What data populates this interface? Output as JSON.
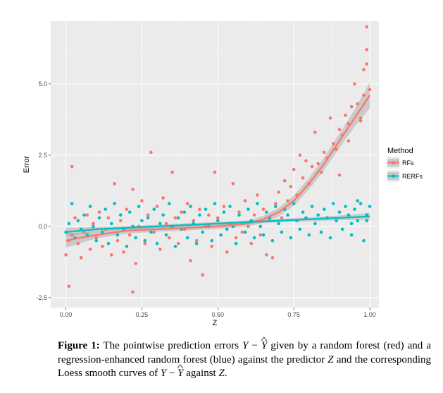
{
  "chart_data": {
    "type": "scatter",
    "xlabel": "Z",
    "ylabel": "Error",
    "xlim": [
      -0.05,
      1.03
    ],
    "ylim": [
      -2.85,
      7.2
    ],
    "x_ticks": [
      0.0,
      0.25,
      0.5,
      0.75,
      1.0
    ],
    "x_tick_labels": [
      "0.00",
      "0.25",
      "0.50",
      "0.75",
      "1.00"
    ],
    "y_ticks": [
      -2.5,
      0.0,
      2.5,
      5.0
    ],
    "y_tick_labels": [
      "-2.5",
      "0.0",
      "2.5",
      "5.0"
    ],
    "grid": true,
    "legend": {
      "title": "Method",
      "position": "right"
    },
    "series": [
      {
        "name": "RFs",
        "color": "#F8766D",
        "points": [
          [
            0.0,
            -1.0
          ],
          [
            0.01,
            -0.5
          ],
          [
            0.01,
            -2.1
          ],
          [
            0.02,
            2.1
          ],
          [
            0.02,
            -0.3
          ],
          [
            0.03,
            0.3
          ],
          [
            0.04,
            -0.6
          ],
          [
            0.05,
            -1.1
          ],
          [
            0.06,
            -0.2
          ],
          [
            0.07,
            0.4
          ],
          [
            0.08,
            -0.8
          ],
          [
            0.09,
            0.1
          ],
          [
            0.1,
            -0.4
          ],
          [
            0.11,
            0.5
          ],
          [
            0.12,
            -0.7
          ],
          [
            0.13,
            -0.1
          ],
          [
            0.14,
            0.3
          ],
          [
            0.15,
            -1.0
          ],
          [
            0.16,
            1.5
          ],
          [
            0.17,
            -0.5
          ],
          [
            0.18,
            0.2
          ],
          [
            0.19,
            -0.9
          ],
          [
            0.2,
            0.6
          ],
          [
            0.21,
            -0.3
          ],
          [
            0.22,
            -2.3
          ],
          [
            0.22,
            1.3
          ],
          [
            0.23,
            -1.3
          ],
          [
            0.24,
            0.0
          ],
          [
            0.25,
            0.9
          ],
          [
            0.26,
            -0.6
          ],
          [
            0.27,
            0.4
          ],
          [
            0.28,
            2.6
          ],
          [
            0.29,
            -0.2
          ],
          [
            0.3,
            0.7
          ],
          [
            0.31,
            -0.8
          ],
          [
            0.32,
            1.0
          ],
          [
            0.33,
            0.1
          ],
          [
            0.34,
            -0.4
          ],
          [
            0.35,
            1.9
          ],
          [
            0.36,
            0.3
          ],
          [
            0.37,
            -0.6
          ],
          [
            0.38,
            0.5
          ],
          [
            0.39,
            -0.1
          ],
          [
            0.4,
            0.8
          ],
          [
            0.41,
            -1.2
          ],
          [
            0.42,
            0.2
          ],
          [
            0.43,
            -0.5
          ],
          [
            0.44,
            0.6
          ],
          [
            0.45,
            -1.7
          ],
          [
            0.46,
            0.0
          ],
          [
            0.47,
            0.4
          ],
          [
            0.48,
            -0.7
          ],
          [
            0.49,
            1.9
          ],
          [
            0.5,
            0.3
          ],
          [
            0.51,
            -0.3
          ],
          [
            0.52,
            0.7
          ],
          [
            0.53,
            -0.9
          ],
          [
            0.54,
            0.1
          ],
          [
            0.55,
            1.5
          ],
          [
            0.56,
            -0.4
          ],
          [
            0.57,
            0.5
          ],
          [
            0.58,
            -0.2
          ],
          [
            0.59,
            0.9
          ],
          [
            0.6,
            0.0
          ],
          [
            0.61,
            -0.6
          ],
          [
            0.62,
            0.4
          ],
          [
            0.63,
            1.1
          ],
          [
            0.64,
            -0.3
          ],
          [
            0.65,
            0.6
          ],
          [
            0.66,
            -1.0
          ],
          [
            0.67,
            0.2
          ],
          [
            0.68,
            -1.1
          ],
          [
            0.69,
            0.8
          ],
          [
            0.7,
            1.2
          ],
          [
            0.71,
            0.3
          ],
          [
            0.72,
            1.6
          ],
          [
            0.73,
            0.9
          ],
          [
            0.74,
            1.4
          ],
          [
            0.75,
            2.0
          ],
          [
            0.76,
            1.1
          ],
          [
            0.77,
            2.5
          ],
          [
            0.78,
            1.7
          ],
          [
            0.79,
            2.3
          ],
          [
            0.8,
            1.5
          ],
          [
            0.81,
            2.1
          ],
          [
            0.82,
            3.3
          ],
          [
            0.83,
            2.2
          ],
          [
            0.84,
            1.9
          ],
          [
            0.85,
            2.6
          ],
          [
            0.86,
            2.4
          ],
          [
            0.87,
            3.8
          ],
          [
            0.88,
            2.9
          ],
          [
            0.89,
            2.7
          ],
          [
            0.9,
            3.4
          ],
          [
            0.91,
            3.2
          ],
          [
            0.92,
            3.9
          ],
          [
            0.93,
            3.6
          ],
          [
            0.94,
            4.2
          ],
          [
            0.95,
            5.0
          ],
          [
            0.96,
            4.3
          ],
          [
            0.97,
            3.8
          ],
          [
            0.98,
            5.5
          ],
          [
            0.98,
            4.6
          ],
          [
            0.99,
            6.2
          ],
          [
            0.99,
            5.7
          ],
          [
            1.0,
            4.8
          ],
          [
            0.99,
            7.0
          ],
          [
            0.97,
            3.7
          ],
          [
            0.93,
            3.0
          ],
          [
            0.9,
            1.8
          ]
        ]
      },
      {
        "name": "RERFs",
        "color": "#00BFC4",
        "points": [
          [
            0.0,
            -0.2
          ],
          [
            0.01,
            0.1
          ],
          [
            0.02,
            0.8
          ],
          [
            0.03,
            -0.4
          ],
          [
            0.04,
            0.2
          ],
          [
            0.05,
            -0.1
          ],
          [
            0.06,
            0.4
          ],
          [
            0.07,
            -0.3
          ],
          [
            0.08,
            0.7
          ],
          [
            0.09,
            0.0
          ],
          [
            0.1,
            -0.5
          ],
          [
            0.11,
            0.3
          ],
          [
            0.12,
            -0.2
          ],
          [
            0.13,
            0.6
          ],
          [
            0.14,
            -0.6
          ],
          [
            0.15,
            0.1
          ],
          [
            0.16,
            0.8
          ],
          [
            0.17,
            -0.3
          ],
          [
            0.18,
            0.4
          ],
          [
            0.19,
            -0.1
          ],
          [
            0.2,
            -0.7
          ],
          [
            0.21,
            0.5
          ],
          [
            0.22,
            0.0
          ],
          [
            0.23,
            -0.4
          ],
          [
            0.24,
            0.7
          ],
          [
            0.25,
            0.2
          ],
          [
            0.26,
            -0.5
          ],
          [
            0.27,
            0.3
          ],
          [
            0.28,
            -0.2
          ],
          [
            0.29,
            0.6
          ],
          [
            0.3,
            -0.6
          ],
          [
            0.31,
            0.1
          ],
          [
            0.32,
            0.4
          ],
          [
            0.33,
            -0.3
          ],
          [
            0.34,
            0.8
          ],
          [
            0.35,
            0.0
          ],
          [
            0.36,
            -0.7
          ],
          [
            0.37,
            0.3
          ],
          [
            0.38,
            -0.1
          ],
          [
            0.39,
            0.5
          ],
          [
            0.4,
            -0.4
          ],
          [
            0.41,
            0.7
          ],
          [
            0.42,
            0.1
          ],
          [
            0.43,
            -0.6
          ],
          [
            0.44,
            0.4
          ],
          [
            0.45,
            -0.2
          ],
          [
            0.46,
            0.6
          ],
          [
            0.47,
            0.0
          ],
          [
            0.48,
            -0.5
          ],
          [
            0.49,
            0.8
          ],
          [
            0.5,
            0.2
          ],
          [
            0.51,
            -0.3
          ],
          [
            0.52,
            0.5
          ],
          [
            0.53,
            -0.1
          ],
          [
            0.54,
            0.7
          ],
          [
            0.55,
            0.0
          ],
          [
            0.56,
            -0.6
          ],
          [
            0.57,
            0.4
          ],
          [
            0.58,
            0.1
          ],
          [
            0.59,
            -0.2
          ],
          [
            0.6,
            0.6
          ],
          [
            0.61,
            0.2
          ],
          [
            0.62,
            -0.4
          ],
          [
            0.63,
            0.8
          ],
          [
            0.64,
            0.0
          ],
          [
            0.65,
            -0.3
          ],
          [
            0.66,
            0.5
          ],
          [
            0.67,
            0.3
          ],
          [
            0.68,
            -0.5
          ],
          [
            0.69,
            0.7
          ],
          [
            0.7,
            0.1
          ],
          [
            0.71,
            -0.2
          ],
          [
            0.72,
            0.6
          ],
          [
            0.73,
            0.4
          ],
          [
            0.74,
            -0.4
          ],
          [
            0.75,
            0.8
          ],
          [
            0.76,
            0.2
          ],
          [
            0.77,
            -0.1
          ],
          [
            0.78,
            0.5
          ],
          [
            0.79,
            0.3
          ],
          [
            0.8,
            -0.3
          ],
          [
            0.81,
            0.7
          ],
          [
            0.82,
            0.1
          ],
          [
            0.83,
            0.4
          ],
          [
            0.84,
            -0.2
          ],
          [
            0.85,
            0.6
          ],
          [
            0.86,
            0.3
          ],
          [
            0.87,
            -0.4
          ],
          [
            0.88,
            0.8
          ],
          [
            0.89,
            0.2
          ],
          [
            0.9,
            0.5
          ],
          [
            0.91,
            -0.1
          ],
          [
            0.92,
            0.7
          ],
          [
            0.93,
            0.4
          ],
          [
            0.94,
            -0.3
          ],
          [
            0.95,
            0.6
          ],
          [
            0.96,
            0.2
          ],
          [
            0.97,
            0.8
          ],
          [
            0.98,
            -0.5
          ],
          [
            0.99,
            0.4
          ],
          [
            1.0,
            0.7
          ],
          [
            0.99,
            0.2
          ],
          [
            0.96,
            0.9
          ],
          [
            0.94,
            0.1
          ]
        ]
      }
    ],
    "smooth_curves": [
      {
        "name": "RFs",
        "color": "#F8766D",
        "x": [
          0.0,
          0.1,
          0.2,
          0.3,
          0.4,
          0.5,
          0.6,
          0.65,
          0.7,
          0.75,
          0.8,
          0.85,
          0.9,
          0.95,
          1.0
        ],
        "y": [
          -0.5,
          -0.3,
          -0.15,
          -0.1,
          -0.05,
          0.0,
          0.1,
          0.25,
          0.5,
          0.9,
          1.5,
          2.2,
          3.0,
          3.8,
          4.6
        ],
        "se": [
          0.25,
          0.12,
          0.1,
          0.09,
          0.09,
          0.09,
          0.1,
          0.12,
          0.15,
          0.18,
          0.2,
          0.22,
          0.25,
          0.3,
          0.45
        ]
      },
      {
        "name": "RERFs",
        "color": "#00BFC4",
        "x": [
          0.0,
          0.1,
          0.2,
          0.3,
          0.4,
          0.5,
          0.6,
          0.7,
          0.8,
          0.9,
          1.0
        ],
        "y": [
          -0.2,
          -0.1,
          -0.05,
          0.0,
          0.05,
          0.1,
          0.15,
          0.2,
          0.25,
          0.3,
          0.35
        ],
        "se": [
          0.15,
          0.08,
          0.06,
          0.06,
          0.06,
          0.06,
          0.06,
          0.06,
          0.07,
          0.08,
          0.12
        ]
      }
    ]
  },
  "caption": {
    "label": "Figure 1:",
    "line1_pre": " The pointwise prediction errors ",
    "sym_Y": "Y",
    "minus": " − ",
    "sym_Yhat": "Y",
    "line1_post": " given by a random forest (red) and a regression-enhanced random forest (blue) against the predictor ",
    "sym_Z": "Z",
    "line2_post": " and the corresponding Loess smooth curves of ",
    "sym_Y2": "Y",
    "minus2": " − ",
    "sym_Yhat2": "Y",
    "line3_pre": " against ",
    "sym_Z2": "Z",
    "end": "."
  }
}
